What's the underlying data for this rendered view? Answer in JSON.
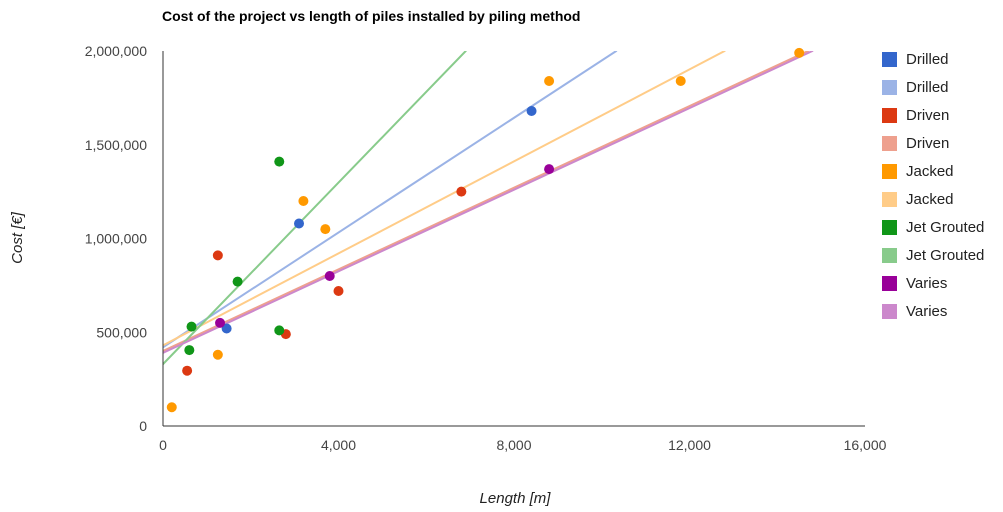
{
  "chart_data": {
    "type": "scatter",
    "title": "Cost of the project vs length of piles installed by piling method",
    "xlabel": "Length [m]",
    "ylabel": "Cost [€]",
    "xlim": [
      0,
      16000
    ],
    "ylim": [
      0,
      2000000
    ],
    "x_ticks": [
      0,
      4000,
      8000,
      12000,
      16000
    ],
    "x_tick_labels": [
      "0",
      "4,000",
      "8,000",
      "12,000",
      "16,000"
    ],
    "y_ticks": [
      0,
      500000,
      1000000,
      1500000,
      2000000
    ],
    "y_tick_labels": [
      "0",
      "500,000",
      "1,000,000",
      "1,500,000",
      "2,000,000"
    ],
    "grid": false,
    "legend_position": "right",
    "series": [
      {
        "name": "Drilled",
        "kind": "points",
        "color": "#3366cc",
        "points": [
          [
            1450,
            520000
          ],
          [
            3100,
            1080000
          ],
          [
            8400,
            1680000
          ]
        ]
      },
      {
        "name": "Drilled",
        "kind": "trendline",
        "color": "#9bb3e6",
        "line": [
          [
            0,
            420000
          ],
          [
            10330,
            2000000
          ]
        ]
      },
      {
        "name": "Driven",
        "kind": "points",
        "color": "#dc3912",
        "points": [
          [
            550,
            295000
          ],
          [
            1250,
            910000
          ],
          [
            2800,
            490000
          ],
          [
            4000,
            720000
          ],
          [
            6800,
            1250000
          ]
        ]
      },
      {
        "name": "Driven",
        "kind": "trendline",
        "color": "#eea08e",
        "line": [
          [
            0,
            400000
          ],
          [
            14700,
            2000000
          ]
        ]
      },
      {
        "name": "Jacked",
        "kind": "points",
        "color": "#ff9900",
        "points": [
          [
            200,
            100000
          ],
          [
            1250,
            380000
          ],
          [
            3200,
            1200000
          ],
          [
            3700,
            1050000
          ],
          [
            8800,
            1840000
          ],
          [
            11800,
            1840000
          ],
          [
            14500,
            1990000
          ]
        ]
      },
      {
        "name": "Jacked",
        "kind": "trendline",
        "color": "#ffcc88",
        "line": [
          [
            0,
            430000
          ],
          [
            12800,
            2000000
          ]
        ]
      },
      {
        "name": "Jet Grouted",
        "kind": "points",
        "color": "#109618",
        "points": [
          [
            600,
            405000
          ],
          [
            650,
            530000
          ],
          [
            1700,
            770000
          ],
          [
            2650,
            1410000
          ],
          [
            2650,
            510000
          ]
        ]
      },
      {
        "name": "Jet Grouted",
        "kind": "trendline",
        "color": "#88cb8b",
        "line": [
          [
            0,
            330000
          ],
          [
            6900,
            2000000
          ]
        ]
      },
      {
        "name": "Varies",
        "kind": "points",
        "color": "#990099",
        "points": [
          [
            1300,
            550000
          ],
          [
            3800,
            800000
          ],
          [
            8800,
            1370000
          ]
        ]
      },
      {
        "name": "Varies",
        "kind": "trendline",
        "color": "#cc88cc",
        "line": [
          [
            0,
            390000
          ],
          [
            14800,
            2000000
          ]
        ]
      }
    ]
  }
}
